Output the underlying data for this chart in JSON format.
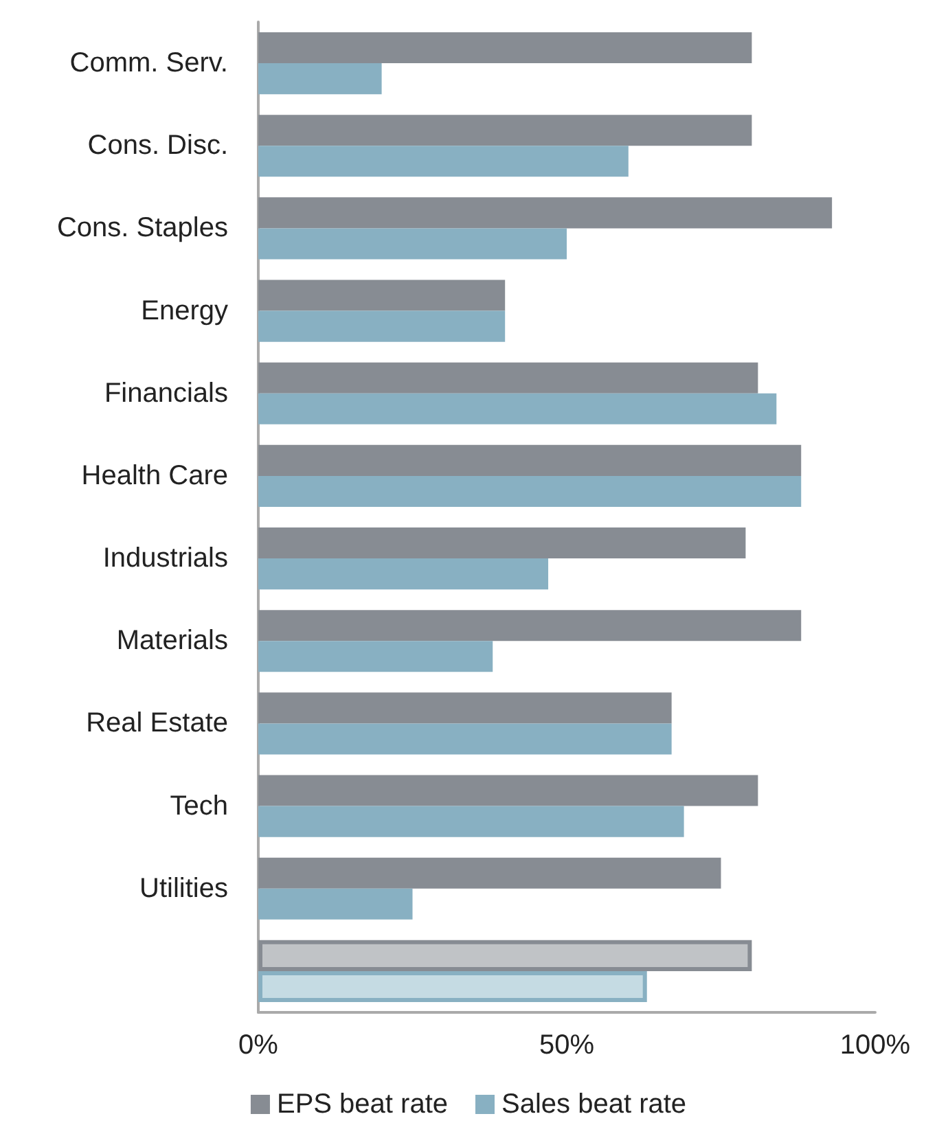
{
  "chart_data": {
    "type": "bar",
    "orientation": "horizontal",
    "categories": [
      "Comm. Serv.",
      "Cons. Disc.",
      "Cons. Staples",
      "Energy",
      "Financials",
      "Health Care",
      "Industrials",
      "Materials",
      "Real Estate",
      "Tech",
      "Utilities",
      null
    ],
    "series": [
      {
        "name": "EPS beat rate",
        "color": "#878c93",
        "colors": [
          "#878c93",
          "#878c93",
          "#878c93",
          "#878c93",
          "#878c93",
          "#878c93",
          "#878c93",
          "#878c93",
          "#878c93",
          "#878c93",
          "#878c93",
          "#c0c3c6"
        ],
        "values": [
          80,
          80,
          93,
          40,
          81,
          88,
          79,
          88,
          67,
          81,
          75,
          80
        ]
      },
      {
        "name": "Sales beat rate",
        "color": "#88b0c2",
        "colors": [
          "#88b0c2",
          "#88b0c2",
          "#88b0c2",
          "#88b0c2",
          "#88b0c2",
          "#88b0c2",
          "#88b0c2",
          "#88b0c2",
          "#88b0c2",
          "#88b0c2",
          "#88b0c2",
          "#c5dbe3"
        ],
        "values": [
          20,
          60,
          50,
          40,
          84,
          88,
          47,
          38,
          67,
          69,
          25,
          63
        ]
      }
    ],
    "xlim": [
      0,
      100
    ],
    "xticks": [
      {
        "value": 0,
        "label": "0%"
      },
      {
        "value": 50,
        "label": "50%"
      },
      {
        "value": 100,
        "label": "100%"
      }
    ],
    "grid": false,
    "legend": "bottom"
  }
}
